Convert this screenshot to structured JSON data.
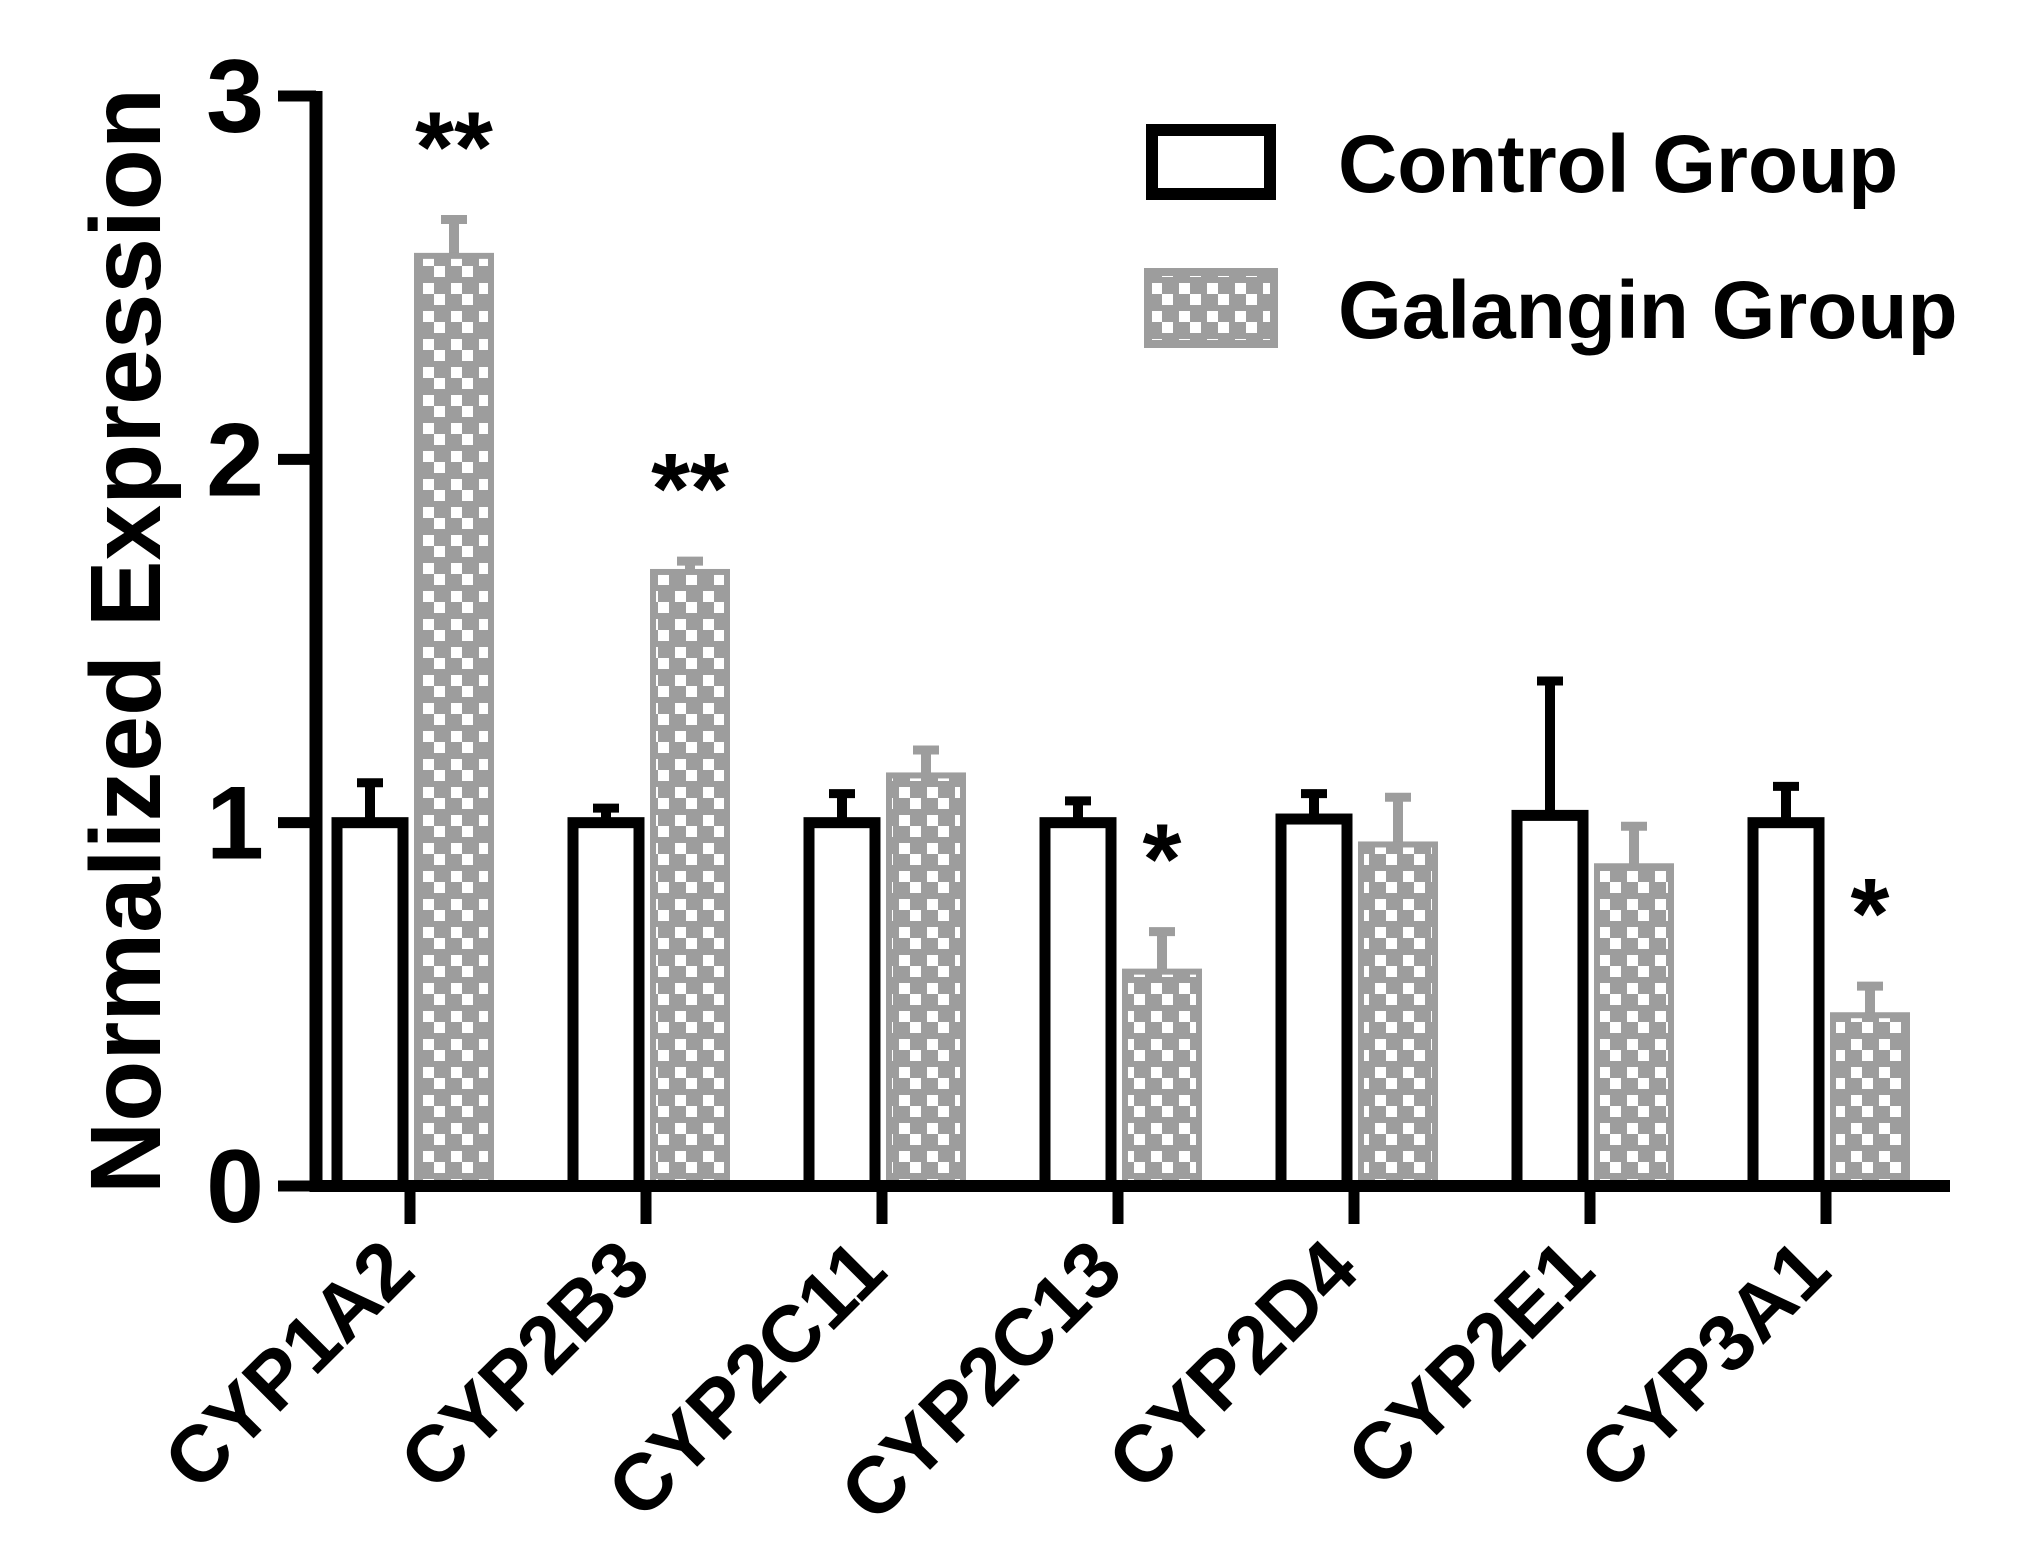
{
  "chart_data": {
    "type": "bar",
    "title": "",
    "xlabel": "",
    "ylabel": "Normalized Expression",
    "ylim": [
      0,
      3
    ],
    "yticks": [
      0,
      1,
      2,
      3
    ],
    "categories": [
      "CYP1A2",
      "CYP2B3",
      "CYP2C11",
      "CYP2C13",
      "CYP2D4",
      "CYP2E1",
      "CYP3A1"
    ],
    "series": [
      {
        "name": "Control Group",
        "values": [
          1.0,
          1.0,
          1.0,
          1.0,
          1.01,
          1.02,
          1.0
        ],
        "errors": [
          0.11,
          0.04,
          0.08,
          0.06,
          0.07,
          0.37,
          0.1
        ],
        "style": "open",
        "color": "#000000"
      },
      {
        "name": "Galangin Group",
        "values": [
          2.56,
          1.69,
          1.13,
          0.59,
          0.94,
          0.88,
          0.47
        ],
        "errors": [
          0.1,
          0.03,
          0.07,
          0.11,
          0.13,
          0.11,
          0.08
        ],
        "style": "checkered",
        "color": "#9d9d9d"
      }
    ],
    "significance": [
      "**",
      "**",
      "",
      "*",
      "",
      "",
      "*"
    ],
    "legend_position": "top-right"
  }
}
